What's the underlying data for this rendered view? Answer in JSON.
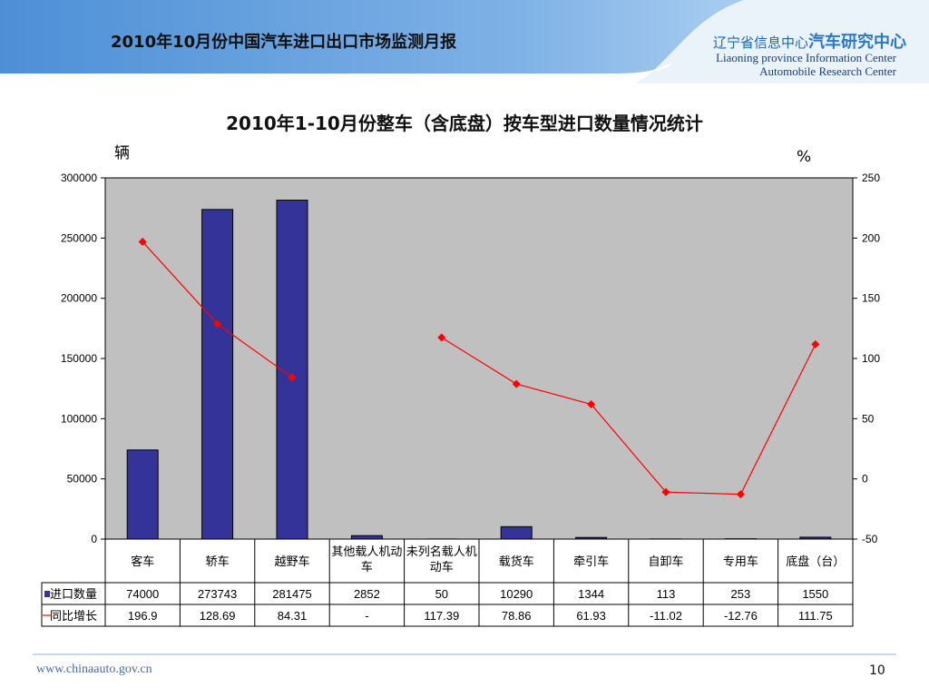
{
  "slide": {
    "title": "2010年10月份中国汽车进口出口市场监测月报",
    "org_cn_prefix": "辽宁省信息中心",
    "org_cn_brand": "汽车研究中心",
    "org_en_line1": "Liaoning province Information Center",
    "org_en_line2": "Automobile Research Center",
    "footer_url": "www.chinaauto.gov.cn",
    "page_number": "10"
  },
  "chart_data": {
    "type": "bar",
    "title": "2010年1-10月份整车（含底盘）按车型进口数量情况统计",
    "left_unit": "辆",
    "right_unit": "%",
    "categories": [
      "客车",
      "轿车",
      "越野车",
      "其他载人机动车",
      "未列名载人机动车",
      "载货车",
      "牵引车",
      "自卸车",
      "专用车",
      "底盘（台）"
    ],
    "series": [
      {
        "name": "进口数量",
        "type": "bar",
        "axis": "left",
        "values": [
          74000,
          273743,
          281475,
          2852,
          50,
          10290,
          1344,
          113,
          253,
          1550
        ],
        "labels": [
          "74000",
          "273743",
          "281475",
          "2852",
          "50",
          "10290",
          "1344",
          "113",
          "253",
          "1550"
        ]
      },
      {
        "name": "同比增长",
        "type": "line",
        "axis": "right",
        "values": [
          196.9,
          128.69,
          84.31,
          null,
          117.39,
          78.86,
          61.93,
          -11.02,
          -12.76,
          111.75
        ],
        "labels": [
          "196.9",
          "128.69",
          "84.31",
          "-",
          "117.39",
          "78.86",
          "61.93",
          "-11.02",
          "-12.76",
          "111.75"
        ]
      }
    ],
    "ylim_left": [
      0,
      300000
    ],
    "yticks_left": [
      "300000",
      "250000",
      "200000",
      "150000",
      "100000",
      "50000",
      "0"
    ],
    "ylim_right": [
      -50,
      250
    ],
    "yticks_right": [
      "250",
      "200",
      "150",
      "100",
      "50",
      "0",
      "-50"
    ],
    "grid": false,
    "legend": "data table below chart",
    "colors": {
      "bar": "#333399",
      "line": "#ff0000",
      "plot_bg": "#c0c0c0",
      "header_blue": "#5b9bd5"
    }
  }
}
